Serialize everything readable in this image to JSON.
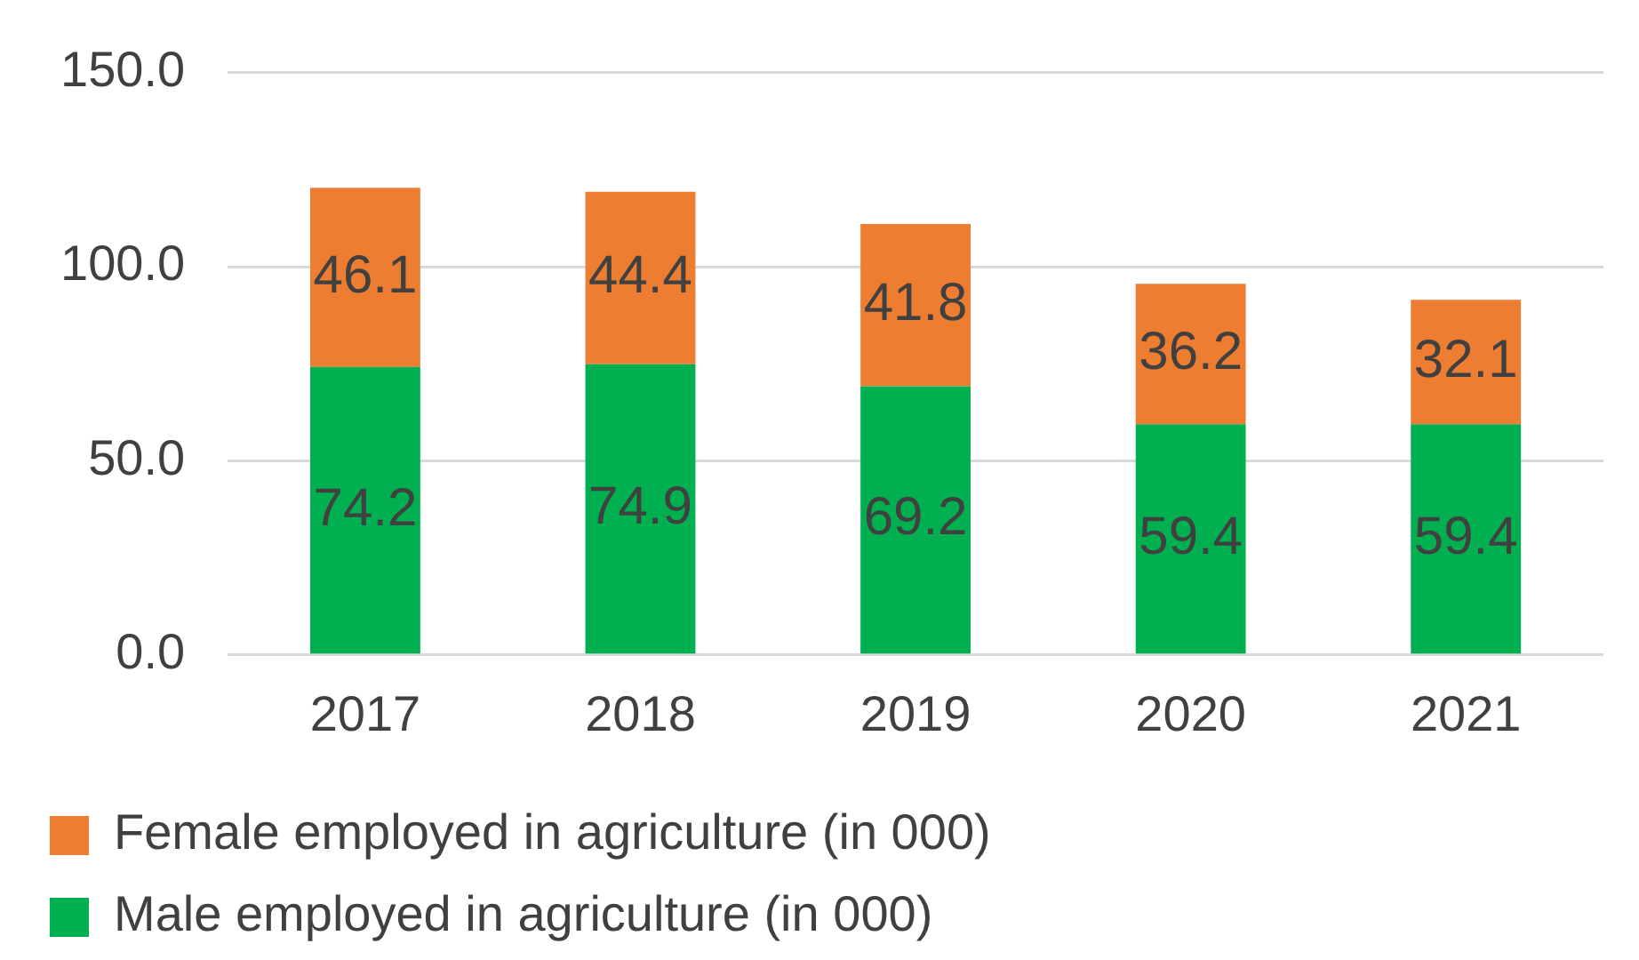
{
  "chart_data": {
    "type": "bar",
    "stacked": true,
    "categories": [
      "2017",
      "2018",
      "2019",
      "2020",
      "2021"
    ],
    "series": [
      {
        "name": "Male employed in agriculture (in 000)",
        "color": "#00b050",
        "values": [
          74.2,
          74.9,
          69.2,
          59.4,
          59.4
        ]
      },
      {
        "name": "Female employed in agriculture (in 000)",
        "color": "#ed7d31",
        "values": [
          46.1,
          44.4,
          41.8,
          36.2,
          32.1
        ]
      }
    ],
    "ylim": [
      0,
      150
    ],
    "yticks": [
      {
        "value": 0,
        "label": "0.0"
      },
      {
        "value": 50,
        "label": "50.0"
      },
      {
        "value": 100,
        "label": "100.0"
      },
      {
        "value": 150,
        "label": "150.0"
      }
    ],
    "grid": "y",
    "legend": "bottom",
    "data_labels": true
  }
}
